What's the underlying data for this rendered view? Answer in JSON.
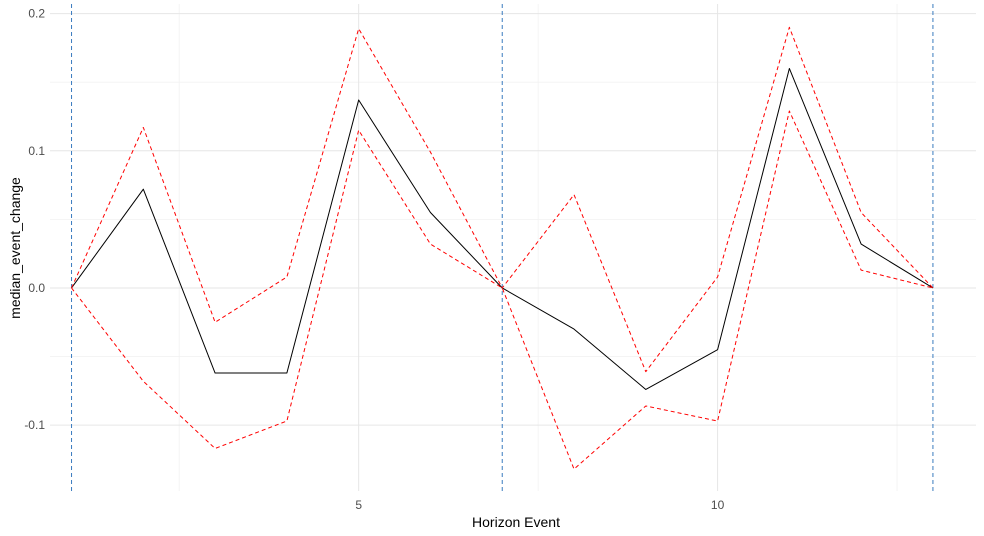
{
  "chart_data": {
    "type": "line",
    "title": "",
    "xlabel": "Horizon Event",
    "ylabel": "median_event_change",
    "xlim": [
      0.7,
      13.6
    ],
    "ylim": [
      -0.148,
      0.207
    ],
    "x_ticks": [
      5,
      10
    ],
    "x_tick_labels": [
      "5",
      "10"
    ],
    "y_ticks": [
      -0.1,
      0.0,
      0.1,
      0.2
    ],
    "y_tick_labels": [
      "-0.1",
      "0.0",
      "0.1",
      "0.2"
    ],
    "x_minor_gridlines": [
      2.5,
      7.5,
      12.5
    ],
    "y_minor_gridlines": [
      -0.05,
      0.05,
      0.15
    ],
    "grid": true,
    "legend": "none",
    "vertical_lines": {
      "x": [
        1,
        7,
        13
      ],
      "color": "#3a7bbf",
      "style": "dashed"
    },
    "series": [
      {
        "role": "median",
        "color": "#000000",
        "style": "solid",
        "x": [
          1,
          2,
          3,
          4,
          5,
          6,
          7,
          8,
          9,
          10,
          11,
          12,
          13
        ],
        "values": [
          0.0,
          0.072,
          -0.062,
          -0.062,
          0.137,
          0.055,
          0.0,
          -0.03,
          -0.074,
          -0.045,
          0.16,
          0.032,
          0.0
        ]
      },
      {
        "role": "upper",
        "color": "#ff0000",
        "style": "dashed",
        "x": [
          1,
          2,
          3,
          4,
          5,
          6,
          7,
          8,
          9,
          10,
          11,
          12,
          13
        ],
        "values": [
          0.0,
          0.117,
          -0.025,
          0.008,
          0.189,
          0.099,
          0.0,
          0.068,
          -0.061,
          0.008,
          0.19,
          0.055,
          0.0
        ]
      },
      {
        "role": "lower",
        "color": "#ff0000",
        "style": "dashed",
        "x": [
          1,
          2,
          3,
          4,
          5,
          6,
          7,
          8,
          9,
          10,
          11,
          12,
          13
        ],
        "values": [
          0.0,
          -0.068,
          -0.117,
          -0.097,
          0.115,
          0.032,
          0.0,
          -0.132,
          -0.086,
          -0.097,
          0.129,
          0.013,
          0.0
        ]
      }
    ]
  }
}
